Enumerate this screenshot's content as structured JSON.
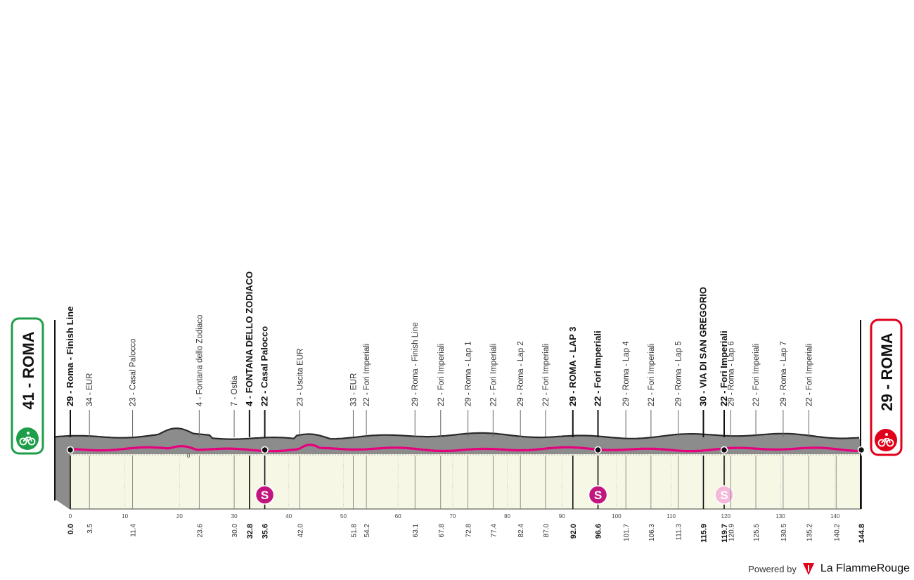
{
  "start": {
    "altitude": "41",
    "name": "ROMA",
    "color": "#1f9e4a"
  },
  "finish": {
    "altitude": "29",
    "name": "ROMA",
    "color": "#e1001a"
  },
  "colors": {
    "profile_top": "#2a2a2a",
    "profile_fill": "#8c8c8c",
    "profile_base": "#f6f7e4",
    "route": "#e6007e"
  },
  "axis": {
    "min": 0,
    "max": 144.8,
    "ticks": [
      0,
      10,
      20,
      30,
      40,
      50,
      60,
      70,
      80,
      90,
      100,
      110,
      120,
      130,
      140
    ],
    "zero_label": "0"
  },
  "waypoints": [
    {
      "km": 0.0,
      "label": "29 - Roma - Finish Line",
      "bold": true
    },
    {
      "km": 3.5,
      "label": "34 - EUR"
    },
    {
      "km": 11.4,
      "label": "23 - Casal Palocco"
    },
    {
      "km": 23.6,
      "label": "4 - Fontana dello Zodiaco"
    },
    {
      "km": 30.0,
      "label": "7 - Ostia"
    },
    {
      "km": 32.8,
      "label": "4 - FONTANA DELLO ZODIACO",
      "bold": true
    },
    {
      "km": 35.6,
      "label": "22 - Casal Palocco",
      "bold": true,
      "sprint": true
    },
    {
      "km": 42.0,
      "label": "23 - Uscita EUR"
    },
    {
      "km": 51.8,
      "label": "33 - EUR"
    },
    {
      "km": 54.2,
      "label": "22 - Fori Imperiali"
    },
    {
      "km": 63.1,
      "label": "29 - Roma - Finish Line"
    },
    {
      "km": 67.8,
      "label": "22 - Fori Imperiali"
    },
    {
      "km": 72.8,
      "label": "29 - Roma - Lap 1"
    },
    {
      "km": 77.4,
      "label": "22 - Fori Imperiali"
    },
    {
      "km": 82.4,
      "label": "29 - Roma - Lap 2"
    },
    {
      "km": 87.0,
      "label": "22 - Fori Imperiali"
    },
    {
      "km": 92.0,
      "label": "29 - ROMA - LAP 3",
      "bold": true
    },
    {
      "km": 96.6,
      "label": "22 - Fori Imperiali",
      "bold": true,
      "sprint": true
    },
    {
      "km": 101.7,
      "label": "29 - Roma - Lap 4"
    },
    {
      "km": 106.3,
      "label": "22 - Fori Imperiali"
    },
    {
      "km": 111.3,
      "label": "29 - Roma - Lap 5"
    },
    {
      "km": 115.9,
      "label": "30 - VIA DI SAN GREGORIO",
      "bold": true
    },
    {
      "km": 119.7,
      "label": "22 - Fori Imperiali",
      "bold": true,
      "sprint": true,
      "sprint_faded": true
    },
    {
      "km": 120.9,
      "label": "29 - Roma - Lap 6"
    },
    {
      "km": 125.5,
      "label": "22 - Fori Imperiali"
    },
    {
      "km": 130.5,
      "label": "29 - Roma - Lap 7"
    },
    {
      "km": 135.2,
      "label": "22 - Fori Imperiali"
    },
    {
      "km": 140.2,
      "label": ""
    },
    {
      "km": 144.8,
      "label": "",
      "bold": true
    }
  ],
  "km_labels": [
    "0.0",
    "3.5",
    "11.4",
    "23.6",
    "30.0",
    "32.8",
    "35.6",
    "42.0",
    "51.8",
    "54.2",
    "63.1",
    "67.8",
    "72.8",
    "77.4",
    "82.4",
    "87.0",
    "92.0",
    "96.6",
    "101.7",
    "106.3",
    "111.3",
    "115.9",
    "119.7",
    "120.9",
    "125.5",
    "130.5",
    "135.2",
    "140.2",
    "144.8"
  ],
  "sprint_symbol": "S",
  "credit": {
    "powered": "Powered by",
    "brand": "La FlammeRouge"
  }
}
